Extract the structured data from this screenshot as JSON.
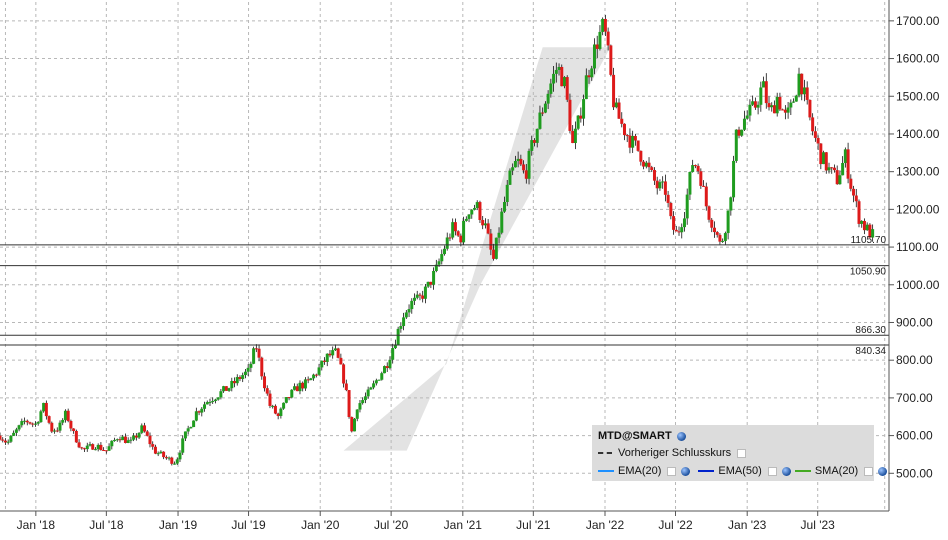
{
  "chart_data": {
    "type": "candlestick",
    "symbol": "MTD@SMART",
    "x_ticks": [
      "Jan '18",
      "Jul '18",
      "Jan '19",
      "Jul '19",
      "Jan '20",
      "Jul '20",
      "Jan '21",
      "Jul '21",
      "Jan '22",
      "Jul '22",
      "Jan '23",
      "Jul '23"
    ],
    "y_ticks": [
      "500.00",
      "600.00",
      "700.00",
      "800.00",
      "900.00",
      "1000.00",
      "1100.00",
      "1200.00",
      "1300.00",
      "1400.00",
      "1500.00",
      "1600.00",
      "1700.00"
    ],
    "ylim": [
      400,
      1750
    ],
    "xlim": [
      "2017-10-01",
      "2023-12-31"
    ],
    "horizontal_lines": [
      {
        "value": 1105.7,
        "label": "1105.70"
      },
      {
        "value": 1050.9,
        "label": "1050.90"
      },
      {
        "value": 866.3,
        "label": "866.30"
      },
      {
        "value": 840.34,
        "label": "840.34"
      }
    ],
    "close_path": [
      [
        "2017-10-01",
        600
      ],
      [
        "2017-10-20",
        580
      ],
      [
        "2017-11-10",
        610
      ],
      [
        "2017-12-05",
        640
      ],
      [
        "2018-01-01",
        630
      ],
      [
        "2018-01-20",
        680
      ],
      [
        "2018-02-10",
        615
      ],
      [
        "2018-03-01",
        620
      ],
      [
        "2018-03-20",
        660
      ],
      [
        "2018-04-05",
        610
      ],
      [
        "2018-05-01",
        560
      ],
      [
        "2018-06-01",
        575
      ],
      [
        "2018-07-01",
        560
      ],
      [
        "2018-08-01",
        600
      ],
      [
        "2018-09-01",
        580
      ],
      [
        "2018-10-01",
        620
      ],
      [
        "2018-11-01",
        560
      ],
      [
        "2018-12-01",
        540
      ],
      [
        "2018-12-26",
        530
      ],
      [
        "2019-01-15",
        590
      ],
      [
        "2019-02-15",
        660
      ],
      [
        "2019-03-15",
        690
      ],
      [
        "2019-04-15",
        710
      ],
      [
        "2019-05-15",
        730
      ],
      [
        "2019-06-15",
        760
      ],
      [
        "2019-07-01",
        770
      ],
      [
        "2019-07-20",
        840
      ],
      [
        "2019-08-05",
        760
      ],
      [
        "2019-08-25",
        680
      ],
      [
        "2019-09-15",
        650
      ],
      [
        "2019-10-10",
        700
      ],
      [
        "2019-11-05",
        730
      ],
      [
        "2019-12-01",
        740
      ],
      [
        "2019-12-31",
        780
      ],
      [
        "2020-01-20",
        810
      ],
      [
        "2020-02-10",
        820
      ],
      [
        "2020-02-28",
        760
      ],
      [
        "2020-03-12",
        690
      ],
      [
        "2020-03-20",
        600
      ],
      [
        "2020-04-05",
        680
      ],
      [
        "2020-04-25",
        700
      ],
      [
        "2020-05-10",
        720
      ],
      [
        "2020-06-01",
        760
      ],
      [
        "2020-06-20",
        790
      ],
      [
        "2020-07-10",
        850
      ],
      [
        "2020-08-01",
        920
      ],
      [
        "2020-08-20",
        950
      ],
      [
        "2020-09-10",
        960
      ],
      [
        "2020-10-01",
        990
      ],
      [
        "2020-10-25",
        1040
      ],
      [
        "2020-11-15",
        1100
      ],
      [
        "2020-12-05",
        1150
      ],
      [
        "2020-12-25",
        1120
      ],
      [
        "2021-01-15",
        1200
      ],
      [
        "2021-02-05",
        1210
      ],
      [
        "2021-03-01",
        1150
      ],
      [
        "2021-03-20",
        1060
      ],
      [
        "2021-04-10",
        1180
      ],
      [
        "2021-05-01",
        1280
      ],
      [
        "2021-05-20",
        1330
      ],
      [
        "2021-06-10",
        1290
      ],
      [
        "2021-07-01",
        1380
      ],
      [
        "2021-07-20",
        1450
      ],
      [
        "2021-08-10",
        1520
      ],
      [
        "2021-09-01",
        1580
      ],
      [
        "2021-09-20",
        1530
      ],
      [
        "2021-10-10",
        1370
      ],
      [
        "2021-10-25",
        1430
      ],
      [
        "2021-11-15",
        1550
      ],
      [
        "2021-12-10",
        1640
      ],
      [
        "2021-12-29",
        1690
      ],
      [
        "2022-01-10",
        1600
      ],
      [
        "2022-01-25",
        1470
      ],
      [
        "2022-02-15",
        1420
      ],
      [
        "2022-03-10",
        1380
      ],
      [
        "2022-04-01",
        1350
      ],
      [
        "2022-04-25",
        1300
      ],
      [
        "2022-05-15",
        1260
      ],
      [
        "2022-06-05",
        1250
      ],
      [
        "2022-06-20",
        1160
      ],
      [
        "2022-07-05",
        1130
      ],
      [
        "2022-07-25",
        1200
      ],
      [
        "2022-08-15",
        1330
      ],
      [
        "2022-09-01",
        1300
      ],
      [
        "2022-09-20",
        1200
      ],
      [
        "2022-10-10",
        1150
      ],
      [
        "2022-10-25",
        1100
      ],
      [
        "2022-11-15",
        1200
      ],
      [
        "2022-12-05",
        1400
      ],
      [
        "2022-12-25",
        1440
      ],
      [
        "2023-01-20",
        1470
      ],
      [
        "2023-02-10",
        1530
      ],
      [
        "2023-02-28",
        1450
      ],
      [
        "2023-03-20",
        1500
      ],
      [
        "2023-04-10",
        1440
      ],
      [
        "2023-04-25",
        1470
      ],
      [
        "2023-05-15",
        1560
      ],
      [
        "2023-06-01",
        1480
      ],
      [
        "2023-06-20",
        1400
      ],
      [
        "2023-07-10",
        1340
      ],
      [
        "2023-08-01",
        1300
      ],
      [
        "2023-08-20",
        1280
      ],
      [
        "2023-09-10",
        1340
      ],
      [
        "2023-09-25",
        1260
      ],
      [
        "2023-10-15",
        1180
      ],
      [
        "2023-11-01",
        1150
      ],
      [
        "2023-11-20",
        1130
      ]
    ]
  },
  "legend": {
    "symbol": "MTD@SMART",
    "prev_close_label": "Vorheriger Schlusskurs",
    "indicators": [
      {
        "label": "EMA(20)",
        "color": "#1e90ff"
      },
      {
        "label": "EMA(50)",
        "color": "#0022cc"
      },
      {
        "label": "SMA(20)",
        "color": "#44aa22"
      }
    ]
  },
  "colors": {
    "up": "#1f9c1f",
    "down": "#dd1a1a",
    "grid": "#b8b8b8",
    "hline": "#333333",
    "band": "#e3e3e3"
  }
}
